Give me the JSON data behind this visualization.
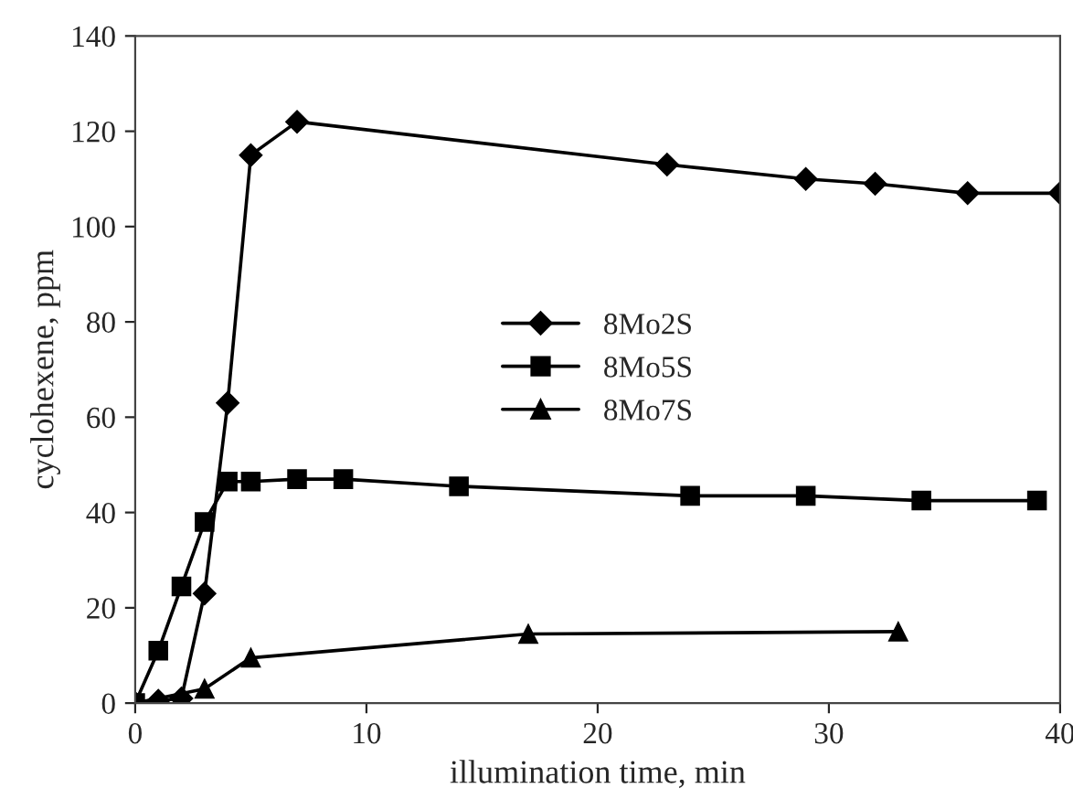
{
  "chart_data": {
    "type": "line",
    "xlabel": "illumination time, min",
    "ylabel": "cyclohexene, ppm",
    "xlim": [
      0,
      40
    ],
    "ylim": [
      0,
      140
    ],
    "xticks": [
      0,
      10,
      20,
      30,
      40
    ],
    "yticks": [
      0,
      20,
      40,
      60,
      80,
      100,
      120,
      140
    ],
    "grid": false,
    "legend": "center",
    "line_style": "solid",
    "series": [
      {
        "name": "8Mo2S",
        "color": "#000000",
        "marker": "diamond",
        "x": [
          0,
          1,
          2,
          3,
          4,
          5,
          7,
          23,
          29,
          32,
          36,
          40
        ],
        "values": [
          0,
          0.5,
          1,
          23,
          63,
          115,
          122,
          113,
          110,
          109,
          107,
          107
        ]
      },
      {
        "name": "8Mo5S",
        "color": "#000000",
        "marker": "square",
        "x": [
          0,
          1,
          2,
          3,
          4,
          5,
          7,
          9,
          14,
          24,
          29,
          34,
          39
        ],
        "values": [
          0,
          11,
          24.5,
          38,
          46.5,
          46.5,
          47,
          47,
          45.5,
          43.5,
          43.5,
          42.5,
          42.5
        ]
      },
      {
        "name": "8Mo7S",
        "color": "#000000",
        "marker": "triangle",
        "x": [
          0,
          3,
          5,
          17,
          33
        ],
        "values": [
          0,
          3,
          9.5,
          14.5,
          15
        ]
      }
    ]
  }
}
